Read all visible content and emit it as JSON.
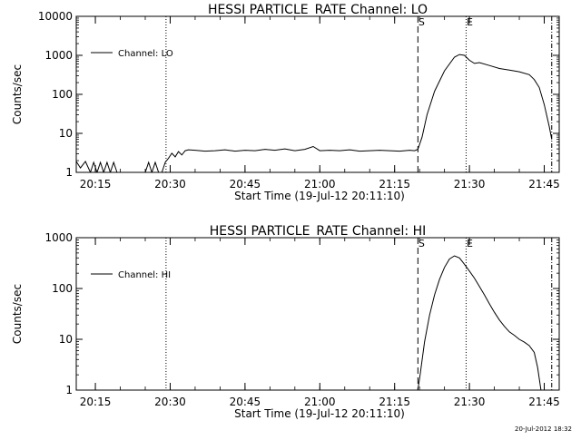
{
  "footer": {
    "timestamp": "20-Jul-2012 18:32"
  },
  "chart_data": [
    {
      "type": "line",
      "title": "HESSI PARTICLE_RATE Channel: LO",
      "xlabel": "Start Time (19-Jul-12 20:11:10)",
      "ylabel": "Counts/sec",
      "yscale": "log",
      "xlim": [
        "20:11:10",
        "21:48:00"
      ],
      "ylim": [
        1,
        10000
      ],
      "x_ticks": [
        "20:15",
        "20:30",
        "20:45",
        "21:00",
        "21:15",
        "21:30",
        "21:45"
      ],
      "y_ticks": [
        "1",
        "10",
        "100",
        "1000",
        "10000"
      ],
      "grid": false,
      "legend": {
        "placement": "top-left",
        "entries": [
          "Channel: LO"
        ]
      },
      "markers": [
        {
          "time": "20:29:10",
          "style": "dotted",
          "label": ""
        },
        {
          "time": "21:19:40",
          "style": "dashed",
          "label": "S"
        },
        {
          "time": "21:29:20",
          "style": "dotted",
          "label": "E"
        },
        {
          "time": "21:46:30",
          "style": "dashdot",
          "label": ""
        }
      ],
      "series": [
        {
          "name": "Channel: LO",
          "x": [
            "20:11:10",
            "20:12:00",
            "20:13:00",
            "20:14:00",
            "20:14:40",
            "20:15:20",
            "20:16:00",
            "20:16:40",
            "20:17:20",
            "20:18:00",
            "20:18:40",
            "20:19:20",
            "20:20:00",
            "20:25:00",
            "20:25:40",
            "20:26:20",
            "20:27:00",
            "20:27:40",
            "20:28:20",
            "20:29:00",
            "20:29:40",
            "20:30:20",
            "20:31:00",
            "20:31:40",
            "20:32:20",
            "20:33:00",
            "20:33:40",
            "20:35:00",
            "20:37:00",
            "20:39:00",
            "20:41:00",
            "20:43:00",
            "20:45:00",
            "20:47:00",
            "20:49:00",
            "20:51:00",
            "20:53:00",
            "20:55:00",
            "20:57:00",
            "20:58:40",
            "21:00:00",
            "21:02:00",
            "21:04:00",
            "21:06:00",
            "21:08:00",
            "21:10:00",
            "21:12:00",
            "21:14:00",
            "21:16:00",
            "21:18:00",
            "21:19:00",
            "21:19:40",
            "21:20:30",
            "21:21:30",
            "21:23:00",
            "21:25:00",
            "21:27:00",
            "21:28:00",
            "21:29:00",
            "21:30:00",
            "21:31:00",
            "21:32:00",
            "21:34:00",
            "21:36:00",
            "21:38:00",
            "21:40:00",
            "21:42:00",
            "21:43:00",
            "21:44:00",
            "21:45:00",
            "21:46:00",
            "21:46:30"
          ],
          "y": [
            1.9,
            1.3,
            1.9,
            1,
            1.8,
            1,
            1.8,
            1,
            1.8,
            1,
            1.8,
            1,
            1,
            1,
            1.8,
            1,
            1.8,
            1,
            1,
            1.8,
            2.3,
            3.1,
            2.5,
            3.4,
            2.8,
            3.6,
            3.8,
            3.7,
            3.5,
            3.6,
            3.8,
            3.5,
            3.7,
            3.6,
            3.9,
            3.7,
            4,
            3.6,
            3.9,
            4.6,
            3.6,
            3.7,
            3.6,
            3.8,
            3.5,
            3.6,
            3.7,
            3.6,
            3.5,
            3.7,
            3.6,
            3.9,
            8,
            30,
            120,
            400,
            900,
            1050,
            1000,
            750,
            620,
            650,
            550,
            460,
            420,
            380,
            320,
            240,
            150,
            55,
            15,
            7
          ]
        }
      ]
    },
    {
      "type": "line",
      "title": "HESSI PARTICLE_RATE Channel: HI",
      "xlabel": "Start Time (19-Jul-12 20:11:10)",
      "ylabel": "Counts/sec",
      "yscale": "log",
      "xlim": [
        "20:11:10",
        "21:48:00"
      ],
      "ylim": [
        1,
        1000
      ],
      "x_ticks": [
        "20:15",
        "20:30",
        "20:45",
        "21:00",
        "21:15",
        "21:30",
        "21:45"
      ],
      "y_ticks": [
        "1",
        "10",
        "100",
        "1000"
      ],
      "grid": false,
      "legend": {
        "placement": "top-left",
        "entries": [
          "Channel: HI"
        ]
      },
      "markers": [
        {
          "time": "20:29:10",
          "style": "dotted",
          "label": ""
        },
        {
          "time": "21:19:40",
          "style": "dashed",
          "label": "S"
        },
        {
          "time": "21:29:20",
          "style": "dotted",
          "label": "E"
        },
        {
          "time": "21:46:30",
          "style": "dashdot",
          "label": ""
        }
      ],
      "series": [
        {
          "name": "Channel: HI",
          "x": [
            "21:19:40",
            "21:20:10",
            "21:21:00",
            "21:22:00",
            "21:23:00",
            "21:24:00",
            "21:25:00",
            "21:26:00",
            "21:27:00",
            "21:28:00",
            "21:29:00",
            "21:30:00",
            "21:31:00",
            "21:32:00",
            "21:33:00",
            "21:34:00",
            "21:35:00",
            "21:36:00",
            "21:37:00",
            "21:38:00",
            "21:39:00",
            "21:40:00",
            "21:41:00",
            "21:42:00",
            "21:43:00",
            "21:43:40",
            "21:44:20"
          ],
          "y": [
            1,
            2.2,
            9,
            30,
            75,
            150,
            260,
            380,
            440,
            400,
            300,
            220,
            160,
            110,
            75,
            50,
            34,
            24,
            18,
            14,
            12,
            10,
            8.8,
            7.5,
            5.5,
            2.8,
            1
          ]
        }
      ]
    }
  ]
}
